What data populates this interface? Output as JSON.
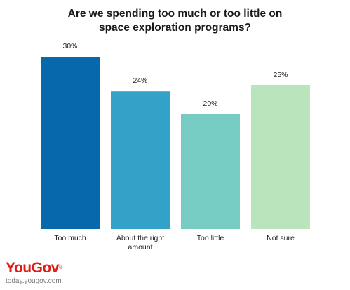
{
  "chart_data": {
    "type": "bar",
    "title_lines": [
      "Are we spending too much or too little on",
      "space exploration programs?"
    ],
    "categories": [
      "Too much",
      "About the right\namount",
      "Too little",
      "Not sure"
    ],
    "values": [
      30,
      24,
      20,
      25
    ],
    "value_labels": [
      "30%",
      "24%",
      "20%",
      "25%"
    ],
    "colors": [
      "#0868ac",
      "#33a2c9",
      "#76cbc3",
      "#bae4bc"
    ],
    "ylim": [
      0,
      30
    ],
    "grid": false,
    "legend": "none"
  },
  "brand": {
    "name": "YouGov",
    "mark": "®",
    "site": "today.yougov.com"
  }
}
